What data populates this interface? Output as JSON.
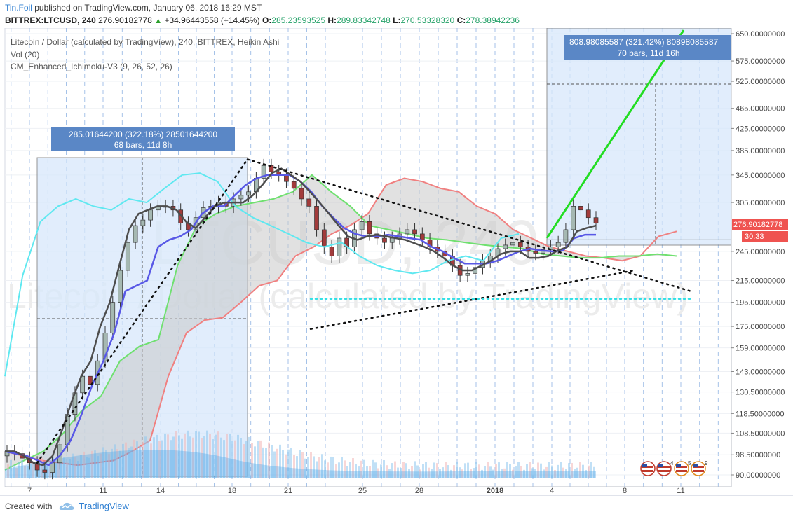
{
  "header": {
    "user": "Tin.Foil",
    "published_text": "published on TradingView.com, January 06, 2018 16:29 MST",
    "symbol_interval": "BITTREX:LTCUSD, 240",
    "last": "276.90182778",
    "change": "+34.96443558 (+14.45%)",
    "up_arrow": "▲",
    "open_label": "O:",
    "open": "285.23593525",
    "high_label": "H:",
    "high": "289.83342748",
    "low_label": "L:",
    "low": "270.53328320",
    "close_label": "C:",
    "close": "278.38942236"
  },
  "legend": {
    "line1": "Litecoin / Dollar (calculated by TradingView), 240, BITTREX, Heikin Ashi",
    "line2": "Vol (20)",
    "line3": "CM_Enhanced_Ichimoku-V3 (9, 26, 52, 26)"
  },
  "watermark": {
    "big": "LTCUSD, 240",
    "sub": "Litecoin / Dollar (calculated by TradingView)"
  },
  "measure_boxes": [
    {
      "line1": "285.01644200 (322.18%) 28501644200",
      "line2": "68 bars, 11d 8h"
    },
    {
      "line1": "808.98085587 (321.42%) 80898085587",
      "line2": "70 bars, 11d 16h"
    }
  ],
  "price_tags": {
    "last": "276.90182778",
    "countdown": "30:33"
  },
  "colors": {
    "bull": "#26a69a",
    "bear": "#ef5350",
    "tenkan": "#4d4d4d",
    "kijun": "#5858e6",
    "chikou": "#5fe8f0",
    "span_a_up": "#6fe06f",
    "span_b_red": "#f08080",
    "cloud_fill": "#c8c8c8",
    "target_line": "#22dd22",
    "measure_fill": "#d7e8fb",
    "measure_label_bg": "#5a87c6",
    "support_cyan": "#33e0e6"
  },
  "chart_data": {
    "type": "candlestick",
    "style": "Heikin Ashi",
    "y_scale": "log",
    "ylim": [
      88,
      660
    ],
    "y_ticks": [
      "650.00000000",
      "575.00000000",
      "525.00000000",
      "465.00000000",
      "425.00000000",
      "385.00000000",
      "345.00000000",
      "305.00000000",
      "245.00000000",
      "215.00000000",
      "195.00000000",
      "175.00000000",
      "159.00000000",
      "143.00000000",
      "130.50000000",
      "118.50000000",
      "108.50000000",
      "98.50000000",
      "90.00000000"
    ],
    "x_ticks": [
      "7",
      "11",
      "14",
      "18",
      "21",
      "25",
      "28",
      "2018",
      "4",
      "8",
      "11"
    ],
    "volume_label": "Vol (20)",
    "candles_approx": [
      100,
      99,
      97,
      95,
      92,
      91,
      95,
      103,
      118,
      130,
      140,
      135,
      150,
      170,
      195,
      225,
      255,
      275,
      282,
      295,
      300,
      300,
      295,
      278,
      270,
      285,
      298,
      300,
      305,
      300,
      310,
      315,
      320,
      340,
      360,
      350,
      345,
      335,
      325,
      310,
      300,
      270,
      250,
      240,
      260,
      250,
      270,
      280,
      265,
      260,
      255,
      260,
      265,
      270,
      265,
      258,
      250,
      245,
      240,
      230,
      220,
      222,
      228,
      235,
      240,
      248,
      252,
      255,
      250,
      245,
      243,
      247,
      250,
      255,
      270,
      300,
      295,
      285,
      278
    ],
    "ichimoku": {
      "tenkan": [
        100,
        100,
        98,
        95,
        94,
        98,
        110,
        125,
        140,
        150,
        175,
        195,
        230,
        270,
        290,
        295,
        300,
        300,
        295,
        280,
        272,
        285,
        300,
        305,
        305,
        305,
        315,
        330,
        348,
        355,
        345,
        335,
        320,
        305,
        290,
        275,
        262,
        258,
        262,
        264,
        262,
        260,
        258,
        254,
        250,
        245,
        238,
        230,
        225,
        225,
        230,
        235,
        242,
        245,
        245,
        238,
        238,
        240,
        246,
        250,
        268,
        272,
        275
      ],
      "kijun": [
        100,
        99,
        98,
        96,
        94,
        98,
        105,
        118,
        135,
        150,
        170,
        205,
        210,
        215,
        250,
        258,
        262,
        270,
        290,
        300,
        300,
        315,
        330,
        340,
        345,
        345,
        345,
        335,
        320,
        300,
        285,
        272,
        265,
        262,
        262,
        264,
        262,
        260,
        258,
        250,
        245,
        238,
        232,
        232,
        232,
        235,
        240,
        245,
        248,
        246,
        245,
        246,
        260,
        264,
        264
      ],
      "chikou": [
        140,
        220,
        280,
        300,
        310,
        300,
        295,
        310,
        305,
        325,
        345,
        348,
        335,
        300,
        285,
        275,
        265,
        255,
        250,
        255,
        240,
        230,
        225,
        222,
        225,
        235,
        240,
        235,
        260,
        265
      ],
      "span_a": [
        92,
        96,
        100,
        108,
        120,
        128,
        150,
        160,
        165,
        230,
        275,
        290,
        300,
        305,
        310,
        320,
        345,
        320,
        300,
        275,
        270,
        265,
        260,
        258,
        255,
        252,
        250,
        248,
        242,
        240,
        238,
        238,
        240,
        240,
        242,
        240
      ],
      "span_b": [
        100,
        98,
        96,
        95,
        94,
        95,
        96,
        100,
        105,
        140,
        170,
        180,
        182,
        195,
        210,
        215,
        240,
        250,
        265,
        275,
        290,
        330,
        340,
        335,
        325,
        320,
        300,
        290,
        270,
        260,
        250,
        245,
        240,
        238,
        235,
        240,
        262,
        268
      ]
    },
    "annotations": {
      "triangle_upper": {
        "from": {
          "x": "Dec 18",
          "y": 370
        },
        "to": {
          "x": "Jan 11",
          "y": 205
        }
      },
      "triangle_lower": {
        "from": {
          "x": "Dec 22",
          "y": 173
        },
        "to": {
          "x": "Jan 9",
          "y": 225
        }
      },
      "target_line": {
        "from": {
          "x": "Jan 4",
          "y": 260
        },
        "to": {
          "x": "Jan 11",
          "y": 660
        }
      },
      "support_level": 198
    }
  }
}
